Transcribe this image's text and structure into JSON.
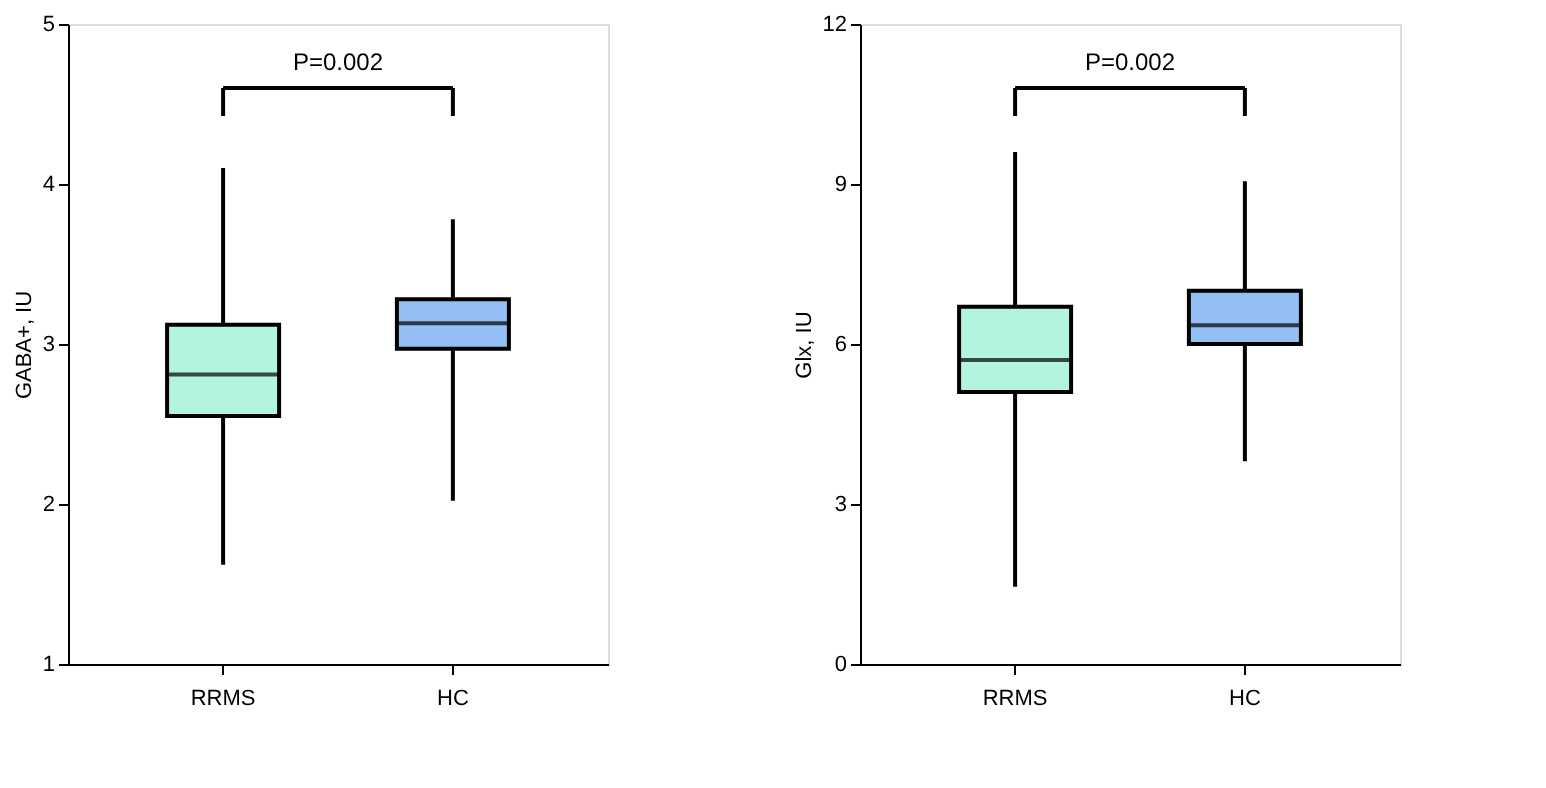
{
  "chart_data": [
    {
      "type": "box",
      "ylabel": "GABA+, IU",
      "categories": [
        "RRMS",
        "HC"
      ],
      "colors": [
        "#b3f5dc",
        "#94bff5"
      ],
      "boxes": [
        {
          "low": 1.62,
          "q1": 2.55,
          "median": 2.81,
          "q3": 3.12,
          "high": 4.1
        },
        {
          "low": 2.02,
          "q1": 2.97,
          "median": 3.13,
          "q3": 3.28,
          "high": 3.78
        }
      ],
      "ylim": [
        1,
        5
      ],
      "yticks": [
        1,
        2,
        3,
        4,
        5
      ],
      "grid": false,
      "annotations": [
        "P=0.002"
      ]
    },
    {
      "type": "box",
      "ylabel": "Glx, IU",
      "categories": [
        "RRMS",
        "HC"
      ],
      "colors": [
        "#b3f5dc",
        "#94bff5"
      ],
      "boxes": [
        {
          "low": 1.45,
          "q1": 5.1,
          "median": 5.7,
          "q3": 6.7,
          "high": 9.6
        },
        {
          "low": 3.8,
          "q1": 6.0,
          "median": 6.35,
          "q3": 7.0,
          "high": 9.05
        }
      ],
      "ylim": [
        0,
        12
      ],
      "yticks": [
        0,
        3,
        6,
        9,
        12
      ],
      "grid": false,
      "annotations": [
        "P=0.002"
      ]
    }
  ]
}
